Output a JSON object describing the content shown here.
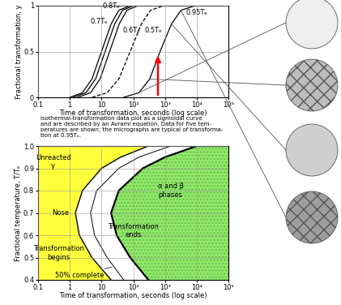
{
  "chart_data": [
    {
      "type": "line",
      "xlabel": "Time of transformation, seconds (log scale)",
      "ylabel": "Fractional transformation, y",
      "log": "x",
      "grid": true,
      "xlim": [
        0.1,
        100000
      ],
      "ylim": [
        0,
        1
      ],
      "xticks": [
        0.1,
        1,
        10,
        {
          "value": 100,
          "label": "10²"
        },
        {
          "value": 1000,
          "label": "10³"
        },
        {
          "value": 10000,
          "label": "10⁴"
        },
        {
          "value": 100000,
          "label": "10⁵"
        }
      ],
      "yticks": [
        0,
        0.5,
        1
      ],
      "series": [
        {
          "name": "0.7Tₑ",
          "color": "#000000",
          "line_style": "solid",
          "x": [
            1,
            2.5,
            5,
            10,
            20,
            35,
            80
          ],
          "values": [
            0,
            0.05,
            0.2,
            0.5,
            0.8,
            0.95,
            1.0
          ]
        },
        {
          "name": "0.8Tₑ",
          "color": "#000000",
          "line_style": "solid",
          "x": [
            1.3,
            3.2,
            6.5,
            13,
            26,
            46,
            100
          ],
          "values": [
            0,
            0.05,
            0.2,
            0.5,
            0.8,
            0.95,
            1.0
          ]
        },
        {
          "name": "0.6Tₑ",
          "color": "#000000",
          "line_style": "solid",
          "x": [
            1.8,
            4.5,
            9,
            18,
            36,
            63,
            140
          ],
          "values": [
            0,
            0.05,
            0.2,
            0.5,
            0.8,
            0.95,
            1.0
          ]
        },
        {
          "name": "0.5Tₑ",
          "color": "#000000",
          "line_style": "dashed",
          "x": [
            5,
            15,
            35,
            80,
            180,
            350,
            900
          ],
          "values": [
            0,
            0.05,
            0.2,
            0.5,
            0.8,
            0.95,
            1.0
          ]
        },
        {
          "name": "0.95Tₑ",
          "color": "#000000",
          "line_style": "solid",
          "x": [
            50,
            150,
            330,
            700,
            1600,
            3200,
            9000
          ],
          "values": [
            0,
            0.05,
            0.2,
            0.5,
            0.8,
            0.95,
            1.0
          ]
        }
      ],
      "arrow": {
        "x": 600,
        "values": [
          0,
          0.48
        ],
        "color": "#ff0000"
      }
    },
    {
      "type": "area",
      "xlabel": "Time of transformation, seconds (log scale)",
      "ylabel": "Fractional temperature, T/Tₑ",
      "log": "x",
      "grid": true,
      "xlim": [
        0.1,
        100000
      ],
      "ylim": [
        0.4,
        1.0
      ],
      "xticks": [
        0.1,
        1,
        10,
        {
          "value": 100,
          "label": "10²"
        },
        {
          "value": 1000,
          "label": "10³"
        },
        {
          "value": 10000,
          "label": "10⁴"
        },
        {
          "value": 100000,
          "label": "10⁵"
        }
      ],
      "yticks": [
        0.4,
        0.5,
        0.6,
        0.7,
        0.8,
        0.9,
        1.0
      ],
      "colors": [
        "#ffff3c",
        "#ffffff",
        "#8fe86a"
      ],
      "y": [
        0.4,
        0.5,
        0.6,
        0.7,
        0.8,
        0.9,
        0.95,
        1.0
      ],
      "series": [
        {
          "color": "#000000",
          "x": [
            20,
            5,
            2,
            1.5,
            2.5,
            10,
            40,
            300
          ]
        },
        {
          "color": "#000000",
          "x": [
            50,
            15,
            6,
            4.5,
            7,
            35,
            150,
            1500
          ]
        },
        {
          "color": "#000000",
          "x": [
            300,
            80,
            30,
            20,
            35,
            200,
            1000,
            10000
          ]
        }
      ],
      "annotations": [
        "Unreacted\nγ",
        "Nose",
        "Transformation\nbegins",
        "50% complete",
        "Transformation\nends",
        "α and β\nphases"
      ]
    }
  ],
  "caption": "Isothermal-transformation data plot as a sigmoidal curve\nand are described by an Avrami equation. Data for five tem-\nperatures are shown; the micrographs are typical of transforma-\ntion at 0.95Tₑ."
}
